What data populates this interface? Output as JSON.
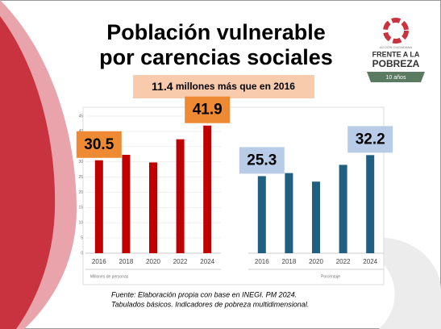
{
  "title": [
    "Población vulnerable",
    "por carencias sociales"
  ],
  "logo": {
    "small": "ACCIÓN CIUDADANA",
    "line1": "FRENTE A LA",
    "line2": "POBREZA",
    "badge": "10 años"
  },
  "banner": {
    "value": "11.4",
    "text": "millones más que en 2016"
  },
  "chart_data": [
    {
      "type": "bar",
      "x_label": "Millones de personas",
      "categories": [
        "2016",
        "2018",
        "2020",
        "2022",
        "2024"
      ],
      "values": [
        30.5,
        32.3,
        29.8,
        37.4,
        41.9
      ],
      "value_labels": [
        "30.5",
        null,
        null,
        null,
        "41.9"
      ],
      "color": "#c00000",
      "label_color": "#ee8a33",
      "ylim": [
        0,
        45
      ],
      "yticks": [
        0,
        5,
        10,
        15,
        20,
        25,
        30,
        35,
        40,
        45
      ],
      "grid": true
    },
    {
      "type": "bar",
      "x_label": "Porcentaje",
      "categories": [
        "2016",
        "2018",
        "2020",
        "2022",
        "2024"
      ],
      "values": [
        25.3,
        26.3,
        23.5,
        29.0,
        32.2
      ],
      "value_labels": [
        "25.3",
        null,
        null,
        null,
        "32.2"
      ],
      "color": "#1f5f7f",
      "label_color": "#b8cce8",
      "ylim": [
        0,
        45
      ],
      "yticks": [],
      "grid": false
    }
  ],
  "source": [
    "Fuente: Elaboración propia con base en INEGI. PM 2024.",
    "Tabulados básicos. Indicadores de pobreza multidimensional."
  ]
}
